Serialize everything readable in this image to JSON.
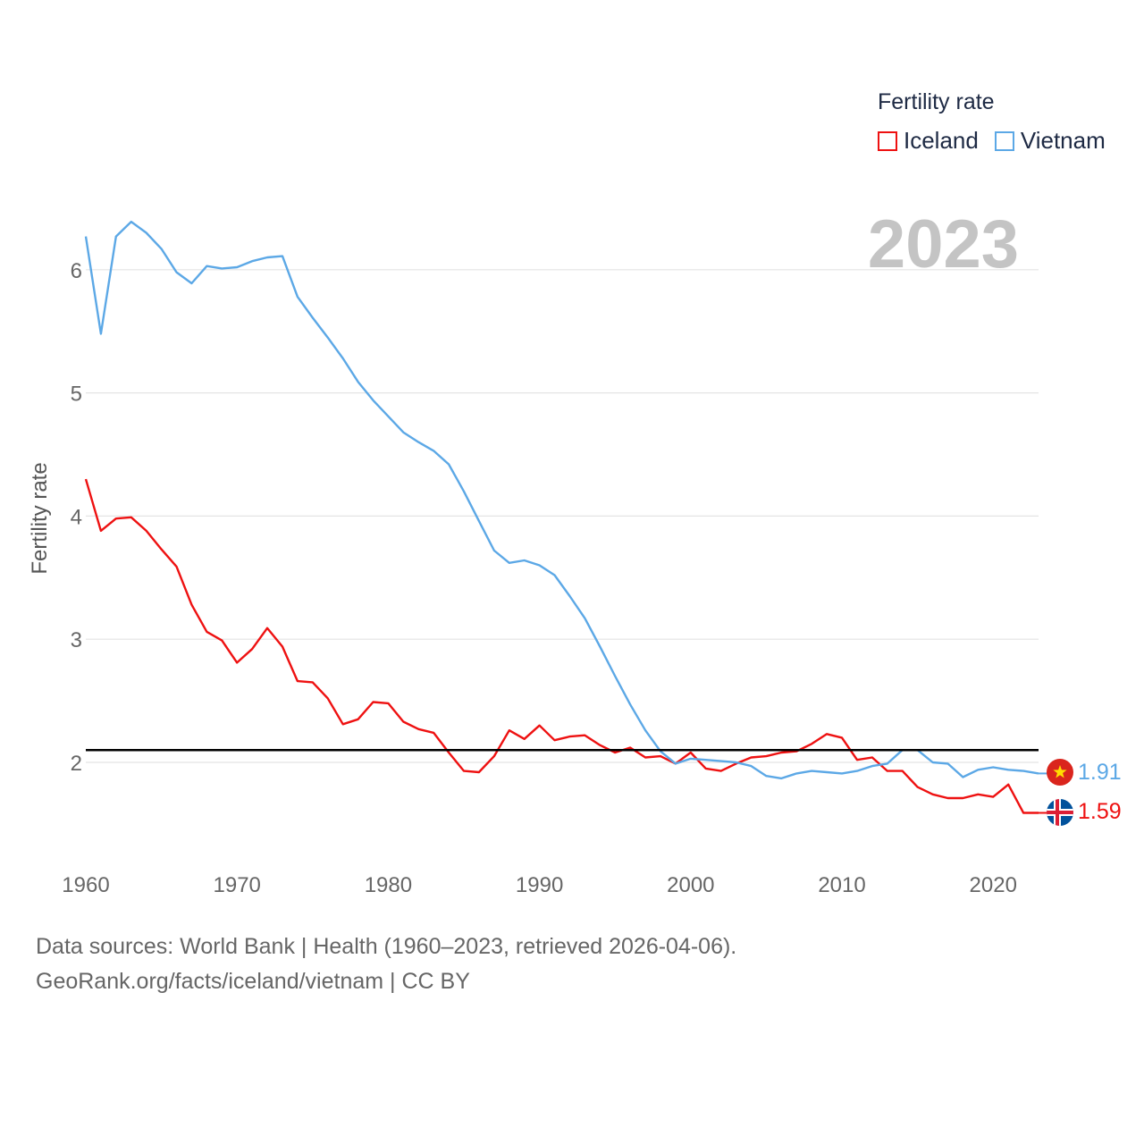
{
  "chart_data": {
    "type": "line",
    "title": "",
    "year_label": "2023",
    "xlabel": "",
    "ylabel": "Fertility rate",
    "xlim": [
      1960,
      2023
    ],
    "ylim": [
      1.2,
      6.6
    ],
    "x_ticks": [
      1960,
      1970,
      1980,
      1990,
      2000,
      2010,
      2020
    ],
    "y_ticks": [
      2,
      3,
      4,
      5,
      6
    ],
    "grid": true,
    "reference_line": {
      "value": 2.1,
      "color": "#000000"
    },
    "legend": {
      "title": "Fertility rate",
      "placement": "top-right",
      "entries": [
        "Iceland",
        "Vietnam"
      ]
    },
    "x": [
      1960,
      1961,
      1962,
      1963,
      1964,
      1965,
      1966,
      1967,
      1968,
      1969,
      1970,
      1971,
      1972,
      1973,
      1974,
      1975,
      1976,
      1977,
      1978,
      1979,
      1980,
      1981,
      1982,
      1983,
      1984,
      1985,
      1986,
      1987,
      1988,
      1989,
      1990,
      1991,
      1992,
      1993,
      1994,
      1995,
      1996,
      1997,
      1998,
      1999,
      2000,
      2001,
      2002,
      2003,
      2004,
      2005,
      2006,
      2007,
      2008,
      2009,
      2010,
      2011,
      2012,
      2013,
      2014,
      2015,
      2016,
      2017,
      2018,
      2019,
      2020,
      2021,
      2022,
      2023
    ],
    "series": [
      {
        "name": "Iceland",
        "color": "#ee1111",
        "end_label": "1.59",
        "flag": "iceland-flag-icon",
        "values": [
          4.3,
          3.88,
          3.98,
          3.99,
          3.88,
          3.73,
          3.59,
          3.28,
          3.06,
          2.99,
          2.81,
          2.92,
          3.09,
          2.94,
          2.66,
          2.65,
          2.52,
          2.31,
          2.35,
          2.49,
          2.48,
          2.33,
          2.27,
          2.24,
          2.08,
          1.93,
          1.92,
          2.05,
          2.26,
          2.19,
          2.3,
          2.18,
          2.21,
          2.22,
          2.14,
          2.08,
          2.12,
          2.04,
          2.05,
          1.99,
          2.08,
          1.95,
          1.93,
          1.99,
          2.04,
          2.05,
          2.08,
          2.09,
          2.15,
          2.23,
          2.2,
          2.02,
          2.04,
          1.93,
          1.93,
          1.8,
          1.74,
          1.71,
          1.71,
          1.74,
          1.72,
          1.82,
          1.59,
          1.59
        ]
      },
      {
        "name": "Vietnam",
        "color": "#5ca8e6",
        "end_label": "1.91",
        "flag": "vietnam-flag-icon",
        "values": [
          6.27,
          5.48,
          6.27,
          6.39,
          6.3,
          6.17,
          5.98,
          5.89,
          6.03,
          6.01,
          6.02,
          6.07,
          6.1,
          6.11,
          5.78,
          5.61,
          5.45,
          5.28,
          5.09,
          4.94,
          4.81,
          4.68,
          4.6,
          4.53,
          4.42,
          4.2,
          3.96,
          3.72,
          3.62,
          3.64,
          3.6,
          3.52,
          3.35,
          3.17,
          2.94,
          2.7,
          2.47,
          2.26,
          2.09,
          1.99,
          2.03,
          2.02,
          2.01,
          2.0,
          1.97,
          1.89,
          1.87,
          1.91,
          1.93,
          1.92,
          1.91,
          1.93,
          1.97,
          1.99,
          2.1,
          2.1,
          2.0,
          1.99,
          1.88,
          1.94,
          1.96,
          1.94,
          1.93,
          1.91
        ]
      }
    ],
    "sources_line1": "Data sources: World Bank | Health (1960–2023, retrieved 2026-04-06).",
    "sources_line2": "GeoRank.org/facts/iceland/vietnam | CC BY"
  }
}
